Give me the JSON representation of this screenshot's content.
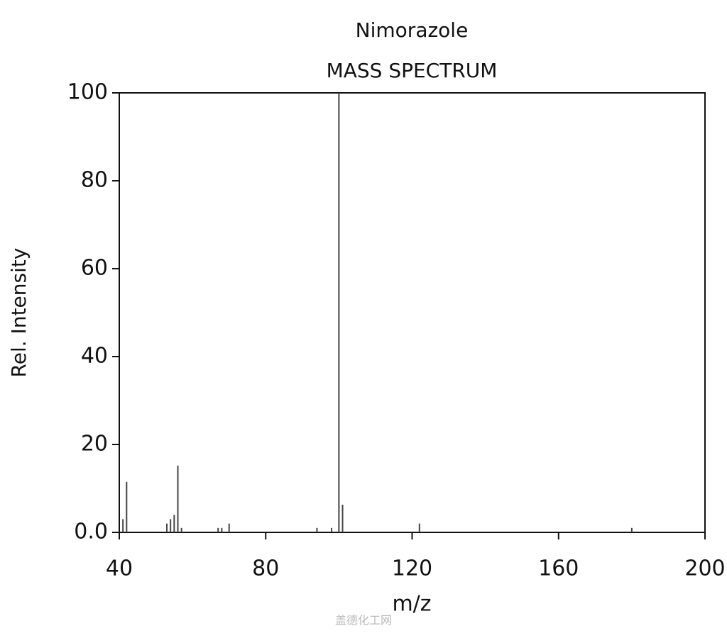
{
  "chart_data": {
    "type": "stem",
    "title": "Nimorazole",
    "subtitle": "MASS SPECTRUM",
    "x_label": "m/z",
    "y_label": "Rel. Intensity",
    "x": [
      41,
      42,
      53,
      54,
      55,
      56,
      57,
      67,
      68,
      70,
      94,
      98,
      100,
      101,
      122,
      180
    ],
    "values": [
      3,
      11.5,
      2,
      3,
      4,
      15.2,
      1,
      1,
      1,
      2,
      1,
      1,
      100,
      6.3,
      2,
      1
    ],
    "color": "#444444",
    "xlim": [
      40,
      200
    ],
    "xticks": [
      40,
      80,
      120,
      160,
      200
    ],
    "ylim": [
      0,
      100
    ],
    "yticks": [
      {
        "value": 0,
        "label": "0.0"
      },
      20,
      40,
      60,
      80,
      100
    ],
    "watermark": "盖德化工网"
  }
}
